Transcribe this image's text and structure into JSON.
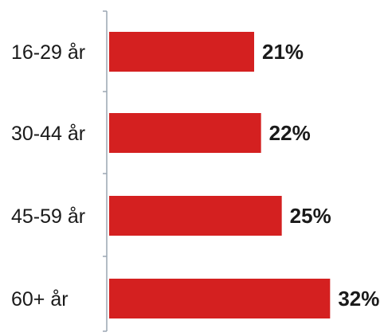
{
  "chart_data": {
    "type": "bar",
    "orientation": "horizontal",
    "categories": [
      "16-29 år",
      "30-44 år",
      "45-59 år",
      "60+ år"
    ],
    "values": [
      21,
      22,
      25,
      32
    ],
    "value_labels": [
      "21%",
      "22%",
      "25%",
      "32%"
    ],
    "unit": "%",
    "title": "",
    "xlabel": "",
    "ylabel": "",
    "xlim": [
      0,
      35
    ],
    "grid": false,
    "legend": "none",
    "bar_color": "#d42020",
    "axis_color": "#9aa6b2"
  }
}
